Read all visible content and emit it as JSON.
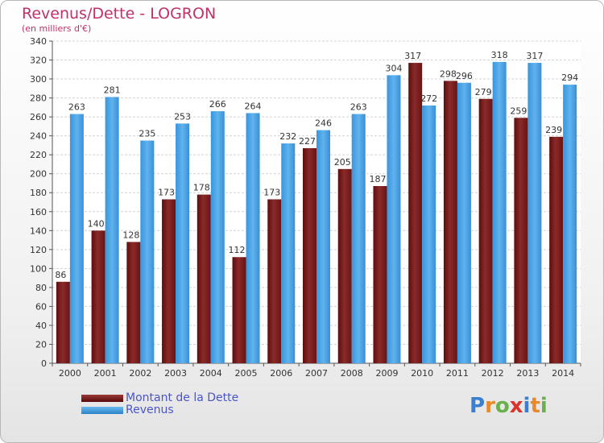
{
  "header": {
    "title": "Revenus/Dette - LOGRON",
    "subtitle": "(en milliers d'€)"
  },
  "brand": {
    "text": "Proxiti",
    "letters": [
      {
        "ch": "P",
        "color": "#3a7fd0"
      },
      {
        "ch": "r",
        "color": "#e9892a"
      },
      {
        "ch": "o",
        "color": "#6ab04c"
      },
      {
        "ch": "x",
        "color": "#d9342b"
      },
      {
        "ch": "i",
        "color": "#3a7fd0"
      },
      {
        "ch": "t",
        "color": "#e9892a"
      },
      {
        "ch": "i",
        "color": "#6ab04c"
      }
    ]
  },
  "chart_data": {
    "type": "bar",
    "title": "Revenus/Dette - LOGRON",
    "subtitle": "(en milliers d'€)",
    "categories": [
      "2000",
      "2001",
      "2002",
      "2003",
      "2004",
      "2005",
      "2006",
      "2007",
      "2008",
      "2009",
      "2010",
      "2011",
      "2012",
      "2013",
      "2014"
    ],
    "series": [
      {
        "name": "Montant de la Dette",
        "color": "#7a1a1a",
        "values": [
          86,
          140,
          128,
          173,
          178,
          112,
          173,
          227,
          205,
          187,
          317,
          298,
          279,
          259,
          239
        ]
      },
      {
        "name": "Revenus",
        "color": "#4aa3e6",
        "values": [
          263,
          281,
          235,
          253,
          266,
          264,
          232,
          246,
          263,
          304,
          272,
          296,
          318,
          317,
          294
        ]
      }
    ],
    "ylim": [
      0,
      340
    ],
    "yticks": [
      0,
      20,
      40,
      60,
      80,
      100,
      120,
      140,
      160,
      180,
      200,
      220,
      240,
      260,
      280,
      300,
      320,
      340
    ],
    "grid": true,
    "legend_position": "bottom-left",
    "xlabel": "",
    "ylabel": ""
  }
}
